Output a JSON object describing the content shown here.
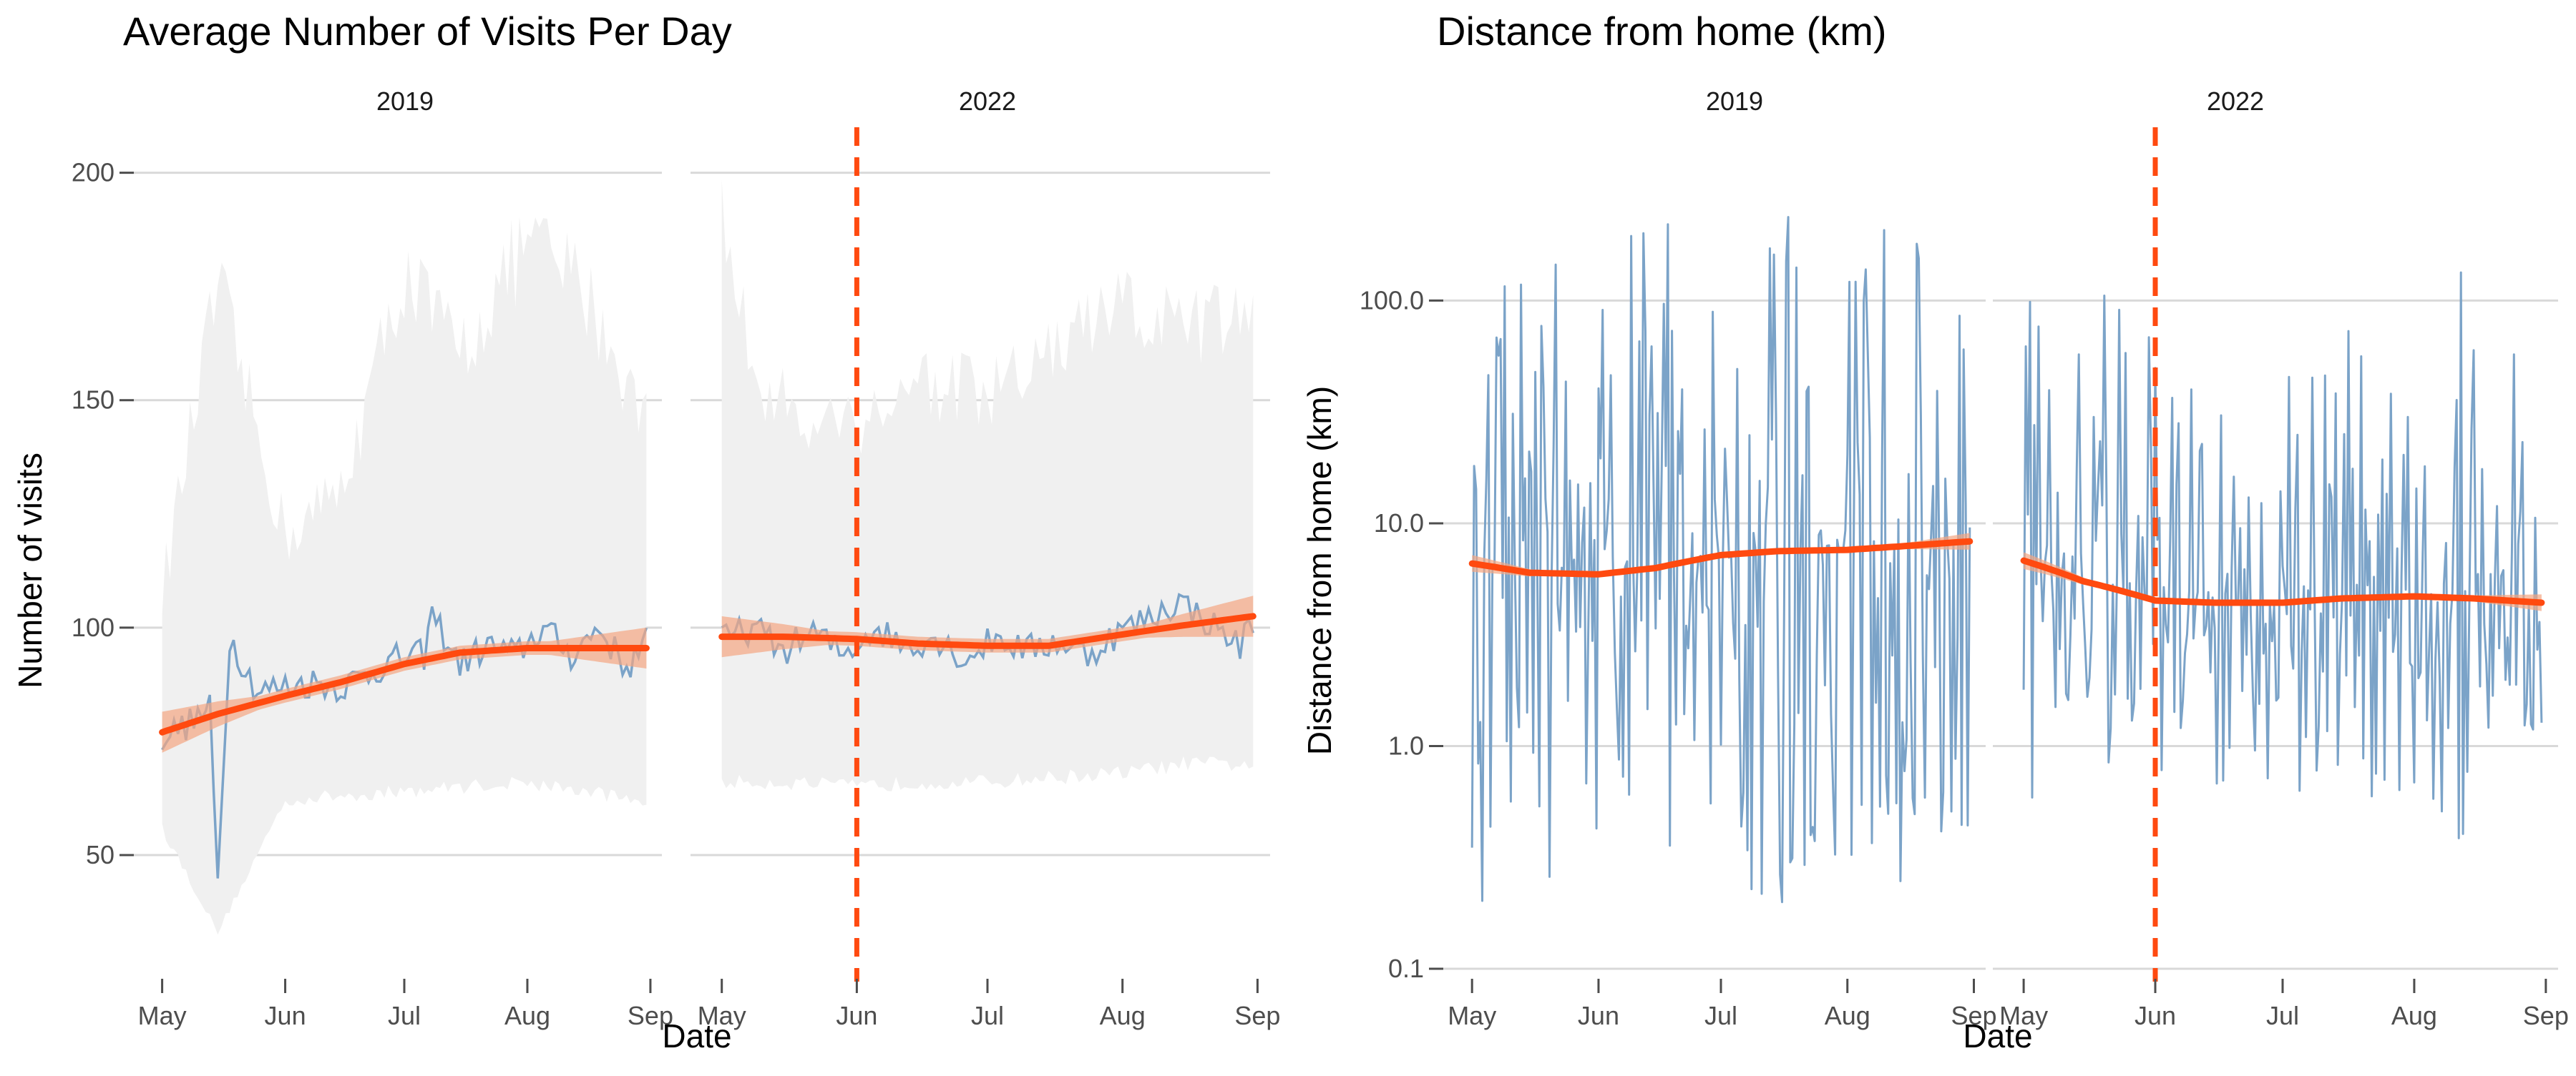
{
  "chart_data": [
    {
      "type": "line",
      "title": "Average Number of Visits Per Day",
      "xlabel": "Date",
      "ylabel": "Number of visits",
      "yscale": "linear",
      "ylim": [
        25,
        210
      ],
      "yticks": [
        50,
        100,
        150,
        200
      ],
      "ytick_labels": [
        "50",
        "100",
        "150",
        "200"
      ],
      "legend": "none",
      "grid": "horizontal major gridlines",
      "colors": {
        "raw": "#7ba3c8",
        "smooth": "#ff4a10",
        "band": "#f0f0f0",
        "ci": "#f4a582",
        "vline": "#ff4a10"
      },
      "facets": [
        {
          "label": "2019",
          "xticks": [
            "May",
            "Jun",
            "Jul",
            "Aug",
            "Sep"
          ],
          "xtick_dates": [
            "2019-05-01",
            "2019-06-01",
            "2019-07-01",
            "2019-08-01",
            "2019-09-01"
          ],
          "x_range": [
            "2019-05-01",
            "2019-08-31"
          ],
          "vline": null,
          "series": [
            {
              "role": "daily mean (blue line)",
              "x": [
                "2019-05-01",
                "2019-05-08",
                "2019-05-13",
                "2019-05-15",
                "2019-05-18",
                "2019-05-25",
                "2019-06-01",
                "2019-06-08",
                "2019-06-15",
                "2019-06-22",
                "2019-06-29",
                "2019-07-06",
                "2019-07-08",
                "2019-07-15",
                "2019-07-22",
                "2019-07-29",
                "2019-08-05",
                "2019-08-12",
                "2019-08-19",
                "2019-08-26",
                "2019-08-31"
              ],
              "y": [
                76,
                79,
                82,
                44,
                98,
                86,
                87,
                88,
                87,
                90,
                93,
                94,
                103,
                92,
                96,
                94,
                100,
                94,
                100,
                91,
                97
              ]
            },
            {
              "role": "smoothed trend (orange line)",
              "x": [
                "2019-05-01",
                "2019-05-15",
                "2019-06-01",
                "2019-06-15",
                "2019-07-01",
                "2019-07-15",
                "2019-08-01",
                "2019-08-15",
                "2019-08-31"
              ],
              "y": [
                77,
                81,
                85,
                88,
                92,
                94.5,
                95.5,
                95.5,
                95.5
              ]
            },
            {
              "role": "grey range band upper",
              "x": [
                "2019-05-01",
                "2019-05-15",
                "2019-06-01",
                "2019-06-15",
                "2019-07-01",
                "2019-07-15",
                "2019-08-01",
                "2019-08-15",
                "2019-08-31"
              ],
              "y": [
                108,
                175,
                120,
                130,
                178,
                160,
                185,
                175,
                145
              ]
            },
            {
              "role": "grey range band lower",
              "x": [
                "2019-05-01",
                "2019-05-15",
                "2019-06-01",
                "2019-06-15",
                "2019-07-01",
                "2019-07-15",
                "2019-08-01",
                "2019-08-15",
                "2019-08-31"
              ],
              "y": [
                56,
                33,
                62,
                63,
                64,
                65,
                66,
                64,
                62
              ]
            }
          ]
        },
        {
          "label": "2022",
          "xticks": [
            "May",
            "Jun",
            "Jul",
            "Aug",
            "Sep"
          ],
          "xtick_dates": [
            "2022-05-01",
            "2022-06-01",
            "2022-07-01",
            "2022-08-01",
            "2022-09-01"
          ],
          "x_range": [
            "2022-05-01",
            "2022-08-31"
          ],
          "vline": "2022-06-01",
          "series": [
            {
              "role": "daily mean (blue line)",
              "x": [
                "2022-05-01",
                "2022-05-08",
                "2022-05-15",
                "2022-05-22",
                "2022-05-29",
                "2022-06-05",
                "2022-06-12",
                "2022-06-19",
                "2022-06-26",
                "2022-07-03",
                "2022-07-10",
                "2022-07-17",
                "2022-07-24",
                "2022-07-31",
                "2022-08-07",
                "2022-08-14",
                "2022-08-21",
                "2022-08-28",
                "2022-08-31"
              ],
              "y": [
                97,
                100,
                95,
                99,
                94,
                100,
                96,
                98,
                93,
                98,
                95,
                97,
                94,
                99,
                102,
                106,
                101,
                96,
                102
              ]
            },
            {
              "role": "smoothed trend (orange line)",
              "x": [
                "2022-05-01",
                "2022-05-15",
                "2022-06-01",
                "2022-06-15",
                "2022-07-01",
                "2022-07-15",
                "2022-08-01",
                "2022-08-15",
                "2022-08-31"
              ],
              "y": [
                98,
                98,
                97.5,
                96.5,
                96,
                96,
                98.5,
                100.5,
                102.5
              ]
            },
            {
              "role": "grey range band upper",
              "x": [
                "2022-05-01",
                "2022-05-10",
                "2022-06-01",
                "2022-06-15",
                "2022-07-01",
                "2022-07-15",
                "2022-08-01",
                "2022-08-15",
                "2022-08-31"
              ],
              "y": [
                190,
                150,
                145,
                155,
                150,
                160,
                170,
                165,
                170
              ]
            },
            {
              "role": "grey range band lower",
              "x": [
                "2022-05-01",
                "2022-05-15",
                "2022-06-01",
                "2022-06-15",
                "2022-07-01",
                "2022-07-15",
                "2022-08-01",
                "2022-08-15",
                "2022-08-31"
              ],
              "y": [
                66,
                66,
                65,
                66,
                66,
                67,
                68,
                70,
                70
              ]
            }
          ]
        }
      ]
    },
    {
      "type": "line",
      "title": "Distance from home (km)",
      "xlabel": "Date",
      "ylabel": "Distance from home (km)",
      "yscale": "log10",
      "ylim": [
        0.1,
        600
      ],
      "yticks": [
        0.1,
        1,
        10,
        100
      ],
      "ytick_labels": [
        "0.1",
        "1.0",
        "10.0",
        "100.0"
      ],
      "legend": "none",
      "grid": "horizontal major gridlines",
      "colors": {
        "raw": "#7ba3c8",
        "smooth": "#ff4a10",
        "ci": "#f4a582",
        "vline": "#ff4a10"
      },
      "facets": [
        {
          "label": "2019",
          "xticks": [
            "May",
            "Jun",
            "Jul",
            "Aug",
            "Sep"
          ],
          "xtick_dates": [
            "2019-05-01",
            "2019-06-01",
            "2019-07-01",
            "2019-08-01",
            "2019-09-01"
          ],
          "x_range": [
            "2019-05-01",
            "2019-08-31"
          ],
          "vline": null,
          "series": [
            {
              "role": "smoothed trend (orange line)",
              "x": [
                "2019-05-01",
                "2019-05-15",
                "2019-06-01",
                "2019-06-15",
                "2019-07-01",
                "2019-07-15",
                "2019-08-01",
                "2019-08-15",
                "2019-08-31"
              ],
              "y": [
                6.6,
                6.0,
                5.9,
                6.3,
                7.2,
                7.5,
                7.6,
                7.9,
                8.3
              ]
            },
            {
              "role": "daily values envelope upper (blue lines)",
              "x": [
                "2019-05-01",
                "2019-05-15",
                "2019-06-01",
                "2019-06-15",
                "2019-07-01",
                "2019-07-15",
                "2019-08-01",
                "2019-08-15",
                "2019-08-31"
              ],
              "y": [
                120,
                180,
                100,
                300,
                320,
                290,
                250,
                500,
                200
              ]
            },
            {
              "role": "daily values envelope lower (blue lines)",
              "x": [
                "2019-05-01",
                "2019-05-15",
                "2019-06-01",
                "2019-06-15",
                "2019-07-01",
                "2019-07-15",
                "2019-08-01",
                "2019-08-15",
                "2019-08-31"
              ],
              "y": [
                0.14,
                0.18,
                0.35,
                0.32,
                0.28,
                0.18,
                0.3,
                0.24,
                0.35
              ]
            }
          ]
        },
        {
          "label": "2022",
          "xticks": [
            "May",
            "Jun",
            "Jul",
            "Aug",
            "Sep"
          ],
          "xtick_dates": [
            "2022-05-01",
            "2022-06-01",
            "2022-07-01",
            "2022-08-01",
            "2022-09-01"
          ],
          "x_range": [
            "2022-05-01",
            "2022-08-31"
          ],
          "vline": "2022-06-01",
          "series": [
            {
              "role": "smoothed trend (orange line)",
              "x": [
                "2022-05-01",
                "2022-05-15",
                "2022-06-01",
                "2022-06-15",
                "2022-07-01",
                "2022-07-15",
                "2022-08-01",
                "2022-08-15",
                "2022-08-31"
              ],
              "y": [
                6.8,
                5.5,
                4.5,
                4.4,
                4.4,
                4.6,
                4.7,
                4.6,
                4.4
              ]
            },
            {
              "role": "daily values envelope upper (blue lines)",
              "x": [
                "2022-05-01",
                "2022-05-15",
                "2022-06-01",
                "2022-06-15",
                "2022-07-01",
                "2022-07-15",
                "2022-08-01",
                "2022-08-15",
                "2022-08-31"
              ],
              "y": [
                100,
                120,
                100,
                40,
                45,
                80,
                130,
                140,
                90
              ]
            },
            {
              "role": "daily values envelope lower (blue lines)",
              "x": [
                "2022-05-01",
                "2022-05-15",
                "2022-06-01",
                "2022-06-15",
                "2022-07-01",
                "2022-07-15",
                "2022-08-01",
                "2022-08-15",
                "2022-08-31"
              ],
              "y": [
                0.5,
                0.7,
                0.5,
                0.6,
                0.6,
                0.7,
                0.3,
                0.3,
                0.8
              ]
            }
          ]
        }
      ]
    }
  ]
}
